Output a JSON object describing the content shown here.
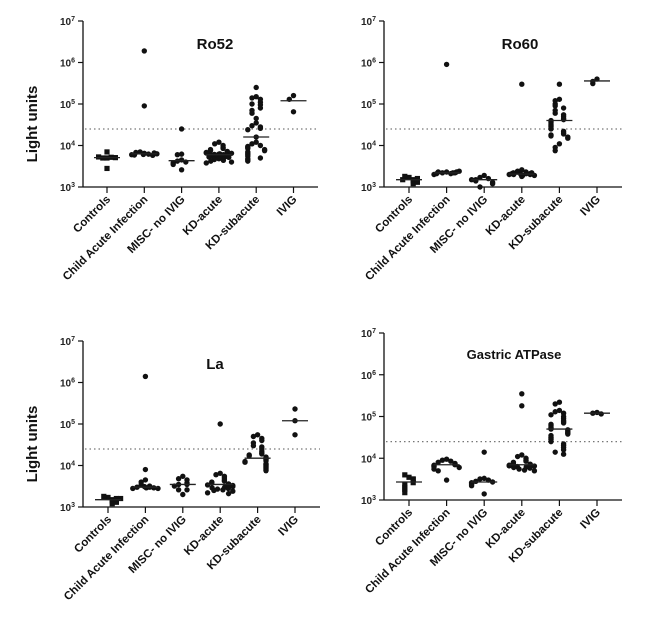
{
  "figure": {
    "ylabel": "Light units"
  },
  "chart_data": [
    {
      "type": "scatter",
      "title": "Ro52",
      "ylabel": "Light units",
      "xlabel": "",
      "yscale": "log",
      "ylim": [
        1000,
        10000000
      ],
      "yticks": [
        1000,
        10000,
        100000,
        1000000,
        10000000
      ],
      "ytick_labels": [
        {
          "base": "10",
          "exp": "3"
        },
        {
          "base": "10",
          "exp": "4"
        },
        {
          "base": "10",
          "exp": "5"
        },
        {
          "base": "10",
          "exp": "6"
        },
        {
          "base": "10",
          "exp": "7"
        }
      ],
      "cutoff": 25000,
      "categories": [
        "Controls",
        "Child Acute Infection",
        "MISC- no IVIG",
        "KD-acute",
        "KD-subacute",
        "IVIG"
      ],
      "series": [
        {
          "name": "Controls",
          "values": [
            5000,
            5000,
            5200,
            5300,
            5100,
            7000,
            2800
          ],
          "median": 5100
        },
        {
          "name": "Child Acute Infection",
          "values": [
            1900000,
            90000,
            6500,
            7000,
            6200,
            6800,
            5800,
            6000,
            6300,
            5900,
            6600,
            6100
          ],
          "median": 6300
        },
        {
          "name": "MISC- no IVIG",
          "values": [
            25000,
            6200,
            6000,
            4500,
            4200,
            4000,
            3800,
            3500,
            2600
          ],
          "median": 4300
        },
        {
          "name": "KD-acute",
          "values": [
            12000,
            11000,
            10000,
            9000,
            8500,
            8000,
            7500,
            7200,
            7000,
            6800,
            6600,
            6500,
            6300,
            6200,
            6100,
            6000,
            5900,
            5800,
            5700,
            5600,
            5500,
            5400,
            5300,
            5200,
            5100,
            5000,
            4800,
            4600,
            4400,
            4200,
            4000,
            3800
          ],
          "median": 6000
        },
        {
          "name": "KD-subacute",
          "values": [
            250000,
            150000,
            140000,
            130000,
            110000,
            100000,
            95000,
            80000,
            70000,
            60000,
            45000,
            35000,
            30000,
            28000,
            26000,
            24000,
            16000,
            12000,
            11000,
            10000,
            9500,
            9000,
            8500,
            8000,
            7500,
            7000,
            6500,
            6000,
            5500,
            5000,
            4800,
            4500,
            4200
          ],
          "median": 16000
        },
        {
          "name": "IVIG",
          "values": [
            160000,
            130000,
            65000
          ],
          "median": 120000
        }
      ]
    },
    {
      "type": "scatter",
      "title": "Ro60",
      "ylabel": "",
      "xlabel": "",
      "yscale": "log",
      "ylim": [
        1000,
        10000000
      ],
      "yticks": [
        1000,
        10000,
        100000,
        1000000,
        10000000
      ],
      "ytick_labels": [
        {
          "base": "10",
          "exp": "3"
        },
        {
          "base": "10",
          "exp": "4"
        },
        {
          "base": "10",
          "exp": "5"
        },
        {
          "base": "10",
          "exp": "6"
        },
        {
          "base": "10",
          "exp": "7"
        }
      ],
      "cutoff": 25000,
      "categories": [
        "Controls",
        "Child Acute Infection",
        "MISC- no IVIG",
        "KD-acute",
        "KD-subacute",
        "IVIG"
      ],
      "series": [
        {
          "name": "Controls",
          "values": [
            1700,
            1800,
            1500,
            1400,
            1600,
            1200,
            1300,
            1500
          ],
          "median": 1500
        },
        {
          "name": "Child Acute Infection",
          "values": [
            900000,
            2300,
            2200,
            2100,
            2300,
            2200,
            2000,
            2400,
            2200,
            2100,
            2300
          ],
          "median": 2200
        },
        {
          "name": "MISC- no IVIG",
          "values": [
            1900,
            1700,
            1600,
            1500,
            1400,
            1500,
            1300,
            1200,
            1000
          ],
          "median": 1500
        },
        {
          "name": "KD-acute",
          "values": [
            300000,
            2600,
            2400,
            2300,
            2200,
            2100,
            2000,
            2000,
            1900,
            2100,
            2200,
            2000,
            1900,
            1800,
            2300,
            2100,
            2000
          ],
          "median": 2050
        },
        {
          "name": "KD-subacute",
          "values": [
            300000,
            130000,
            120000,
            100000,
            90000,
            80000,
            70000,
            60000,
            55000,
            50000,
            45000,
            42000,
            40000,
            38000,
            35000,
            32000,
            30000,
            28000,
            25000,
            22000,
            20000,
            19000,
            18000,
            17000,
            16000,
            15000,
            11000,
            9000,
            7500
          ],
          "median": 40000
        },
        {
          "name": "IVIG",
          "values": [
            400000,
            350000,
            310000
          ],
          "median": 360000
        }
      ]
    },
    {
      "type": "scatter",
      "title": "La",
      "ylabel": "Light units",
      "xlabel": "",
      "yscale": "log",
      "ylim": [
        1000,
        10000000
      ],
      "yticks": [
        1000,
        10000,
        100000,
        1000000,
        10000000
      ],
      "ytick_labels": [
        {
          "base": "10",
          "exp": "3"
        },
        {
          "base": "10",
          "exp": "4"
        },
        {
          "base": "10",
          "exp": "5"
        },
        {
          "base": "10",
          "exp": "6"
        },
        {
          "base": "10",
          "exp": "7"
        }
      ],
      "cutoff": 25000,
      "categories": [
        "Controls",
        "Child Acute Infection",
        "MISC- no IVIG",
        "KD-acute",
        "KD-subacute",
        "IVIG"
      ],
      "series": [
        {
          "name": "Controls",
          "values": [
            1700,
            1800,
            1500,
            1400,
            1600,
            1200,
            1300,
            1600
          ],
          "median": 1500
        },
        {
          "name": "Child Acute Infection",
          "values": [
            1400000,
            8000,
            4500,
            4000,
            3500,
            3200,
            3000,
            3000,
            2900,
            2800,
            2800,
            3100,
            2900
          ],
          "median": 3000
        },
        {
          "name": "MISC- no IVIG",
          "values": [
            5500,
            4800,
            4500,
            3800,
            3500,
            3500,
            3200,
            2600,
            2600,
            2000
          ],
          "median": 3500
        },
        {
          "name": "KD-acute",
          "values": [
            100000,
            6500,
            6000,
            5500,
            5000,
            4500,
            4200,
            4000,
            3800,
            3600,
            3500,
            3400,
            3300,
            3200,
            3100,
            3000,
            2900,
            2800,
            2700,
            2600,
            2500,
            2400,
            2200,
            2100
          ],
          "median": 3500
        },
        {
          "name": "KD-subacute",
          "values": [
            55000,
            50000,
            45000,
            40000,
            35000,
            30000,
            28000,
            25000,
            22000,
            20000,
            19000,
            18000,
            17000,
            16000,
            15000,
            14500,
            14000,
            13000,
            12500,
            12000,
            11000,
            10500,
            10000,
            9500,
            9000,
            8500,
            8000,
            7500
          ],
          "median": 15000
        },
        {
          "name": "IVIG",
          "values": [
            230000,
            120000,
            55000
          ],
          "median": 120000
        }
      ]
    },
    {
      "type": "scatter",
      "title": "Gastric ATPase",
      "ylabel": "",
      "xlabel": "",
      "yscale": "log",
      "ylim": [
        1000,
        10000000
      ],
      "yticks": [
        1000,
        10000,
        100000,
        1000000,
        10000000
      ],
      "ytick_labels": [
        {
          "base": "10",
          "exp": "3"
        },
        {
          "base": "10",
          "exp": "4"
        },
        {
          "base": "10",
          "exp": "5"
        },
        {
          "base": "10",
          "exp": "6"
        },
        {
          "base": "10",
          "exp": "7"
        }
      ],
      "cutoff": 25000,
      "categories": [
        "Controls",
        "Child Acute Infection",
        "MISC- no IVIG",
        "KD-acute",
        "KD-subacute",
        "IVIG"
      ],
      "series": [
        {
          "name": "Controls",
          "values": [
            3500,
            4000,
            3200,
            3100,
            2600,
            2400,
            2000,
            1800,
            1500
          ],
          "median": 2700
        },
        {
          "name": "Child Acute Infection",
          "values": [
            9500,
            9000,
            8500,
            8000,
            7500,
            7200,
            7000,
            6800,
            6500,
            6200,
            6000,
            5500,
            5000,
            3000
          ],
          "median": 7000
        },
        {
          "name": "MISC- no IVIG",
          "values": [
            14000,
            3300,
            3200,
            3000,
            2800,
            2700,
            2600,
            2500,
            2400,
            2200,
            1400
          ],
          "median": 2700
        },
        {
          "name": "KD-acute",
          "values": [
            350000,
            180000,
            12000,
            11000,
            10000,
            9000,
            8500,
            8000,
            7500,
            7200,
            7000,
            6800,
            6600,
            6500,
            6300,
            6200,
            6000,
            5800,
            5500,
            5200,
            5000
          ],
          "median": 7000
        },
        {
          "name": "KD-subacute",
          "values": [
            220000,
            200000,
            140000,
            130000,
            120000,
            110000,
            100000,
            90000,
            80000,
            75000,
            70000,
            65000,
            60000,
            55000,
            52000,
            50000,
            48000,
            45000,
            42000,
            40000,
            38000,
            35000,
            32000,
            30000,
            28000,
            25000,
            22000,
            20000,
            18000,
            16000,
            14000,
            12500
          ],
          "median": 50000
        },
        {
          "name": "IVIG",
          "values": [
            125000,
            120000,
            115000
          ],
          "median": 120000
        }
      ]
    }
  ]
}
